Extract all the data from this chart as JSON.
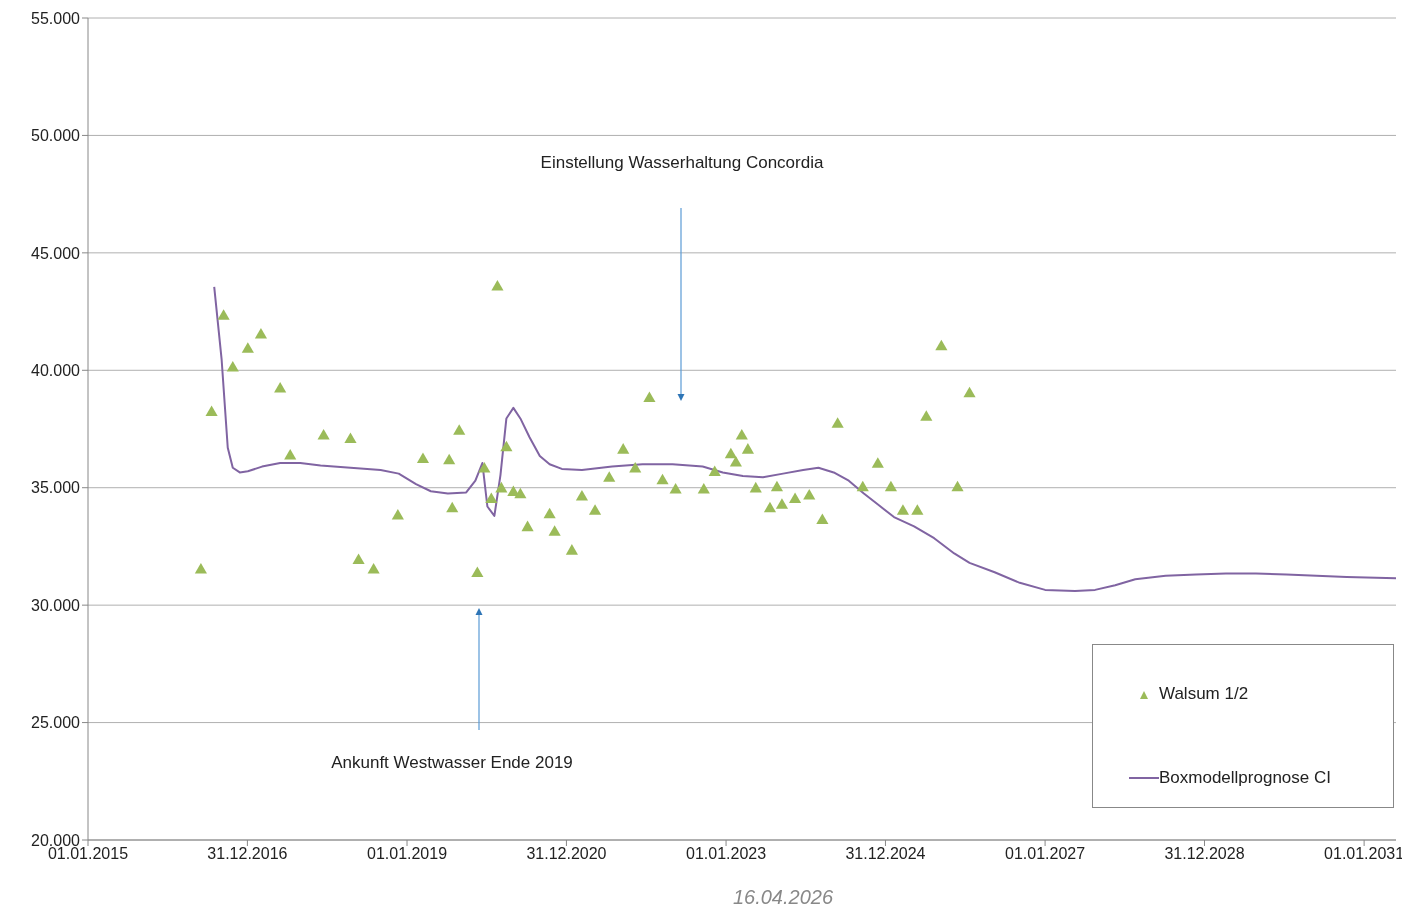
{
  "chart_data": {
    "type": "scatter",
    "xlim": [
      "2015-01-01",
      "2031-05-27"
    ],
    "xticks": [
      {
        "value": "2015-01-01",
        "label": "01.01.2015"
      },
      {
        "value": "2016-12-31",
        "label": "31.12.2016"
      },
      {
        "value": "2019-01-01",
        "label": "01.01.2019"
      },
      {
        "value": "2020-12-31",
        "label": "31.12.2020"
      },
      {
        "value": "2023-01-01",
        "label": "01.01.2023"
      },
      {
        "value": "2024-12-31",
        "label": "31.12.2024"
      },
      {
        "value": "2027-01-01",
        "label": "01.01.2027"
      },
      {
        "value": "2028-12-31",
        "label": "31.12.2028"
      },
      {
        "value": "2031-01-01",
        "label": "01.01.2031"
      }
    ],
    "ylim": [
      20000,
      55000
    ],
    "yticks": [
      {
        "value": 20000,
        "label": "20.000"
      },
      {
        "value": 25000,
        "label": "25.000"
      },
      {
        "value": 30000,
        "label": "30.000"
      },
      {
        "value": 35000,
        "label": "35.000"
      },
      {
        "value": 40000,
        "label": "40.000"
      },
      {
        "value": 45000,
        "label": "45.000"
      },
      {
        "value": 50000,
        "label": "50.000"
      },
      {
        "value": 55000,
        "label": "55.000"
      }
    ],
    "grid": "y",
    "legend": "bottom right",
    "series": [
      {
        "name": "Walsum 1/2",
        "marker": "triangle",
        "color": "#9bbb59",
        "x": [
          "2016-06-01",
          "2016-07-20",
          "2016-09-13",
          "2016-10-25",
          "2017-01-02",
          "2017-03-03",
          "2017-05-30",
          "2017-07-15",
          "2017-12-15",
          "2018-04-17",
          "2018-05-24",
          "2018-08-01",
          "2018-11-20",
          "2019-03-15",
          "2019-07-13",
          "2019-07-27",
          "2019-08-28",
          "2019-11-19",
          "2019-12-21",
          "2020-01-22",
          "2020-02-19",
          "2020-03-08",
          "2020-03-31",
          "2020-05-02",
          "2020-06-03",
          "2020-07-06",
          "2020-10-15",
          "2020-11-07",
          "2021-01-25",
          "2021-03-12",
          "2021-05-11",
          "2021-07-15",
          "2021-09-17",
          "2021-11-11",
          "2022-01-15",
          "2022-03-16",
          "2022-05-15",
          "2022-09-21",
          "2022-11-10",
          "2023-01-23",
          "2023-02-15",
          "2023-03-14",
          "2023-04-11",
          "2023-05-17",
          "2023-07-21",
          "2023-08-22",
          "2023-09-14",
          "2023-11-13",
          "2024-01-17",
          "2024-03-17",
          "2024-05-26",
          "2024-09-18",
          "2024-11-26",
          "2025-01-25",
          "2025-03-21",
          "2025-05-26",
          "2025-07-06",
          "2025-09-13",
          "2025-11-26",
          "2026-01-20"
        ],
        "values": [
          31500,
          38200,
          42300,
          40100,
          40900,
          41500,
          39200,
          36350,
          37200,
          37050,
          31900,
          31500,
          33800,
          36200,
          36150,
          34100,
          37400,
          31350,
          35800,
          34500,
          43550,
          34950,
          36700,
          34800,
          34700,
          33300,
          33850,
          33100,
          32300,
          34600,
          34000,
          35400,
          36600,
          35800,
          38800,
          35300,
          34900,
          34900,
          35650,
          36400,
          36050,
          37200,
          36600,
          34950,
          34100,
          35000,
          34250,
          34500,
          34650,
          33600,
          37700,
          35000,
          36000,
          35000,
          34000,
          34000,
          38000,
          41000,
          35000,
          39000
        ]
      },
      {
        "name": "Boxmodellprognose CI",
        "type": "line",
        "marker": "none",
        "line_style": "solid",
        "color": "#8064a2",
        "x": [
          "2016-08-01",
          "2016-09-04",
          "2016-10-02",
          "2016-10-25",
          "2016-11-26",
          "2017-01-02",
          "2017-03-08",
          "2017-05-30",
          "2017-08-30",
          "2017-12-01",
          "2018-04-17",
          "2018-09-02",
          "2018-11-24",
          "2019-02-11",
          "2019-04-20",
          "2019-07-07",
          "2019-09-29",
          "2019-11-10",
          "2019-12-12",
          "2020-01-04",
          "2020-02-05",
          "2020-03-04",
          "2020-03-31",
          "2020-05-02",
          "2020-06-03",
          "2020-07-15",
          "2020-08-31",
          "2020-10-15",
          "2020-12-10",
          "2021-03-12",
          "2021-07-28",
          "2021-12-14",
          "2022-05-01",
          "2022-09-16",
          "2022-12-17",
          "2023-03-19",
          "2023-06-19",
          "2023-09-19",
          "2023-12-20",
          "2024-02-28",
          "2024-05-08",
          "2024-07-16",
          "2024-09-23",
          "2024-12-01",
          "2025-02-08",
          "2025-05-11",
          "2025-08-11",
          "2025-11-11",
          "2026-01-20",
          "2026-05-15",
          "2026-09-07",
          "2027-01-01",
          "2027-05-18",
          "2027-08-18",
          "2027-11-18",
          "2028-02-18",
          "2028-07-06",
          "2028-11-22",
          "2029-04-08",
          "2029-08-24",
          "2030-01-10",
          "2030-05-28",
          "2030-10-13",
          "2031-05-27"
        ],
        "values": [
          43550,
          40450,
          36700,
          35850,
          35650,
          35700,
          35900,
          36050,
          36050,
          35950,
          35850,
          35750,
          35600,
          35150,
          34850,
          34750,
          34800,
          35300,
          36050,
          34200,
          33800,
          35550,
          37950,
          38400,
          37950,
          37150,
          36350,
          36000,
          35800,
          35750,
          35900,
          36000,
          36000,
          35900,
          35650,
          35500,
          35450,
          35600,
          35750,
          35850,
          35650,
          35300,
          34750,
          34250,
          33750,
          33350,
          32850,
          32200,
          31800,
          31400,
          30950,
          30650,
          30600,
          30650,
          30850,
          31100,
          31250,
          31300,
          31350,
          31350,
          31300,
          31250,
          31200,
          31150
        ]
      }
    ],
    "annotations": [
      "Einstellung Wasserhaltung Concordia",
      "Ankunft Westwasser Ende 2019",
      "16.04.2026"
    ]
  }
}
